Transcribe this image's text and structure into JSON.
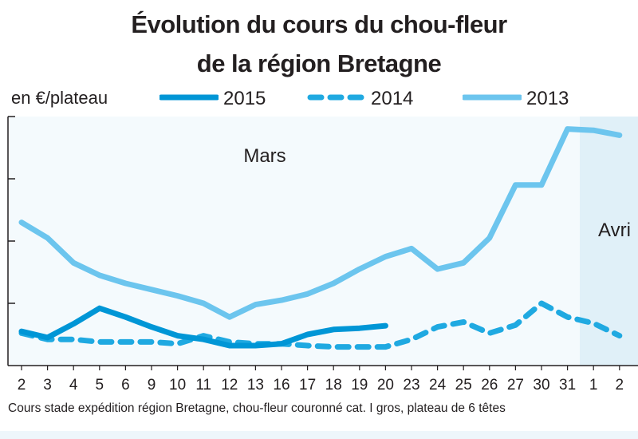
{
  "chart_data": {
    "type": "line",
    "title": "Évolution du cours du chou-fleur",
    "subtitle": "de la région Bretagne",
    "ylabel": "en €/plateau",
    "ylim": [
      0,
      4
    ],
    "categories": [
      "2",
      "3",
      "4",
      "5",
      "6",
      "9",
      "10",
      "11",
      "12",
      "13",
      "16",
      "17",
      "18",
      "19",
      "20",
      "23",
      "24",
      "25",
      "26",
      "27",
      "30",
      "31",
      "1",
      "2"
    ],
    "months": [
      {
        "label": "Mars"
      },
      {
        "label": "Avri"
      }
    ],
    "series": [
      {
        "name": "2015",
        "style": "solid",
        "color": "#0096d6",
        "values": [
          0.55,
          0.45,
          0.67,
          0.92,
          0.78,
          0.62,
          0.48,
          0.42,
          0.32,
          0.32,
          0.35,
          0.5,
          0.58,
          0.6,
          0.64,
          null,
          null,
          null,
          null,
          null,
          null,
          null,
          null,
          null
        ]
      },
      {
        "name": "2014",
        "style": "dashed",
        "color": "#1fa9e1",
        "values": [
          0.52,
          0.42,
          0.42,
          0.38,
          0.38,
          0.38,
          0.35,
          0.48,
          0.38,
          0.35,
          0.35,
          0.32,
          0.3,
          0.3,
          0.3,
          0.42,
          0.62,
          0.7,
          0.52,
          0.65,
          1.0,
          0.78,
          0.68,
          0.48
        ]
      },
      {
        "name": "2013",
        "style": "solid-light",
        "color": "#6cc5ee",
        "values": [
          2.3,
          2.05,
          1.65,
          1.45,
          1.32,
          1.22,
          1.12,
          1.0,
          0.78,
          0.98,
          1.05,
          1.15,
          1.32,
          1.55,
          1.75,
          1.88,
          1.55,
          1.65,
          2.05,
          2.9,
          2.9,
          3.8,
          3.78,
          3.7
        ]
      }
    ],
    "legend_placement": "top",
    "grid": false
  },
  "footer": "Cours stade expédition région Bretagne, chou-fleur couronné cat. I gros, plateau de 6 têtes",
  "colors": {
    "plot_bg_left": "#f4fafd",
    "plot_bg_right": "#e0f0f8",
    "axis": "#231f20"
  }
}
